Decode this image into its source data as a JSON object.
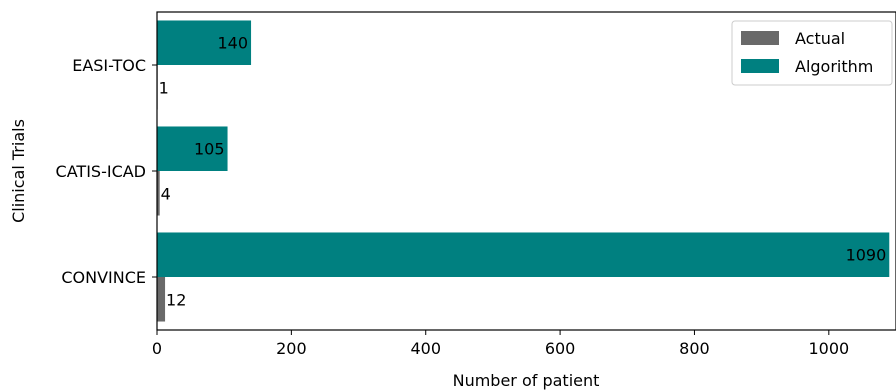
{
  "chart_data": {
    "type": "bar",
    "orientation": "horizontal",
    "categories": [
      "CONVINCE",
      "CATIS-ICAD",
      "EASI-TOC"
    ],
    "series": [
      {
        "name": "Actual",
        "values": [
          12,
          4,
          1
        ],
        "color": "#696969"
      },
      {
        "name": "Algorithm",
        "values": [
          1090,
          105,
          140
        ],
        "color": "#008080"
      }
    ],
    "xlabel": "Number of patient",
    "ylabel": "Clinical Trials",
    "xlim": [
      0,
      1100
    ],
    "xticks": [
      0,
      200,
      400,
      600,
      800,
      1000
    ],
    "grid": false,
    "legend_position": "top-right"
  }
}
